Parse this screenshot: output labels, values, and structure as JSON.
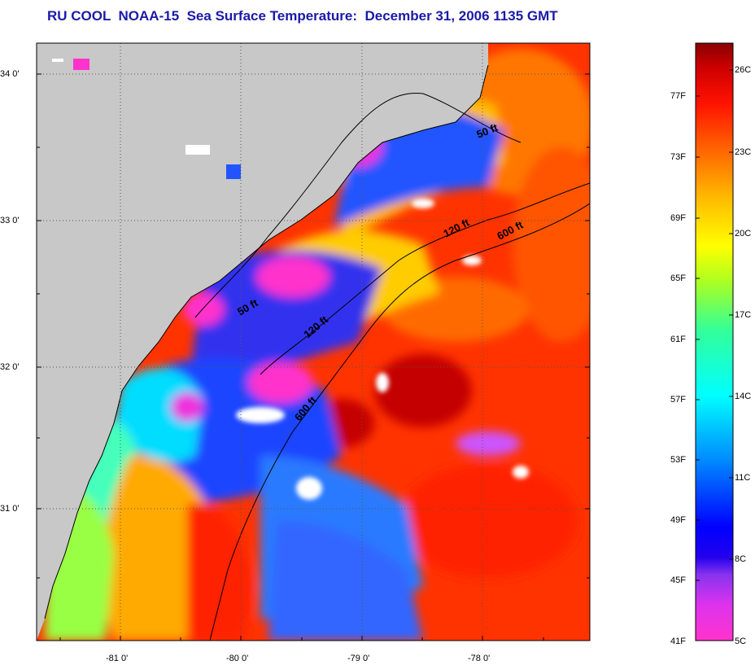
{
  "title": "RU COOL  NOAA-15  Sea Surface Temperature:  December 31, 2006 1135 GMT",
  "lat_labels": [
    "34 0'",
    "33 0'",
    "32 0'",
    "31 0'"
  ],
  "lon_labels": [
    "-81 0'",
    "-80 0'",
    "-79 0'",
    "-78 0'"
  ],
  "contours": {
    "inner": [
      {
        "label": "50 ft"
      },
      {
        "label": "50 ft"
      }
    ],
    "mid": [
      {
        "label": "120 ft"
      },
      {
        "label": "120 ft"
      }
    ],
    "outer": [
      {
        "label": "600 ft"
      },
      {
        "label": "600 ft"
      }
    ]
  },
  "colorbar": {
    "fahrenheit": [
      "77F",
      "73F",
      "69F",
      "65F",
      "61F",
      "57F",
      "53F",
      "49F",
      "45F",
      "41F"
    ],
    "celsius": [
      "26C",
      "23C",
      "20C",
      "17C",
      "14C",
      "11C",
      "8C",
      "5C"
    ]
  },
  "colors": {
    "land": "#c8c8c8",
    "title": "#1a1aa8",
    "ramp": [
      "#ff33cc",
      "#cc33ff",
      "#4422ee",
      "#0000ff",
      "#0077ff",
      "#00ccff",
      "#00ffee",
      "#33ff99",
      "#88ff33",
      "#ddff00",
      "#ffff00",
      "#ffcc00",
      "#ff9900",
      "#ff6600",
      "#ff2200",
      "#dd0000",
      "#880000"
    ]
  }
}
